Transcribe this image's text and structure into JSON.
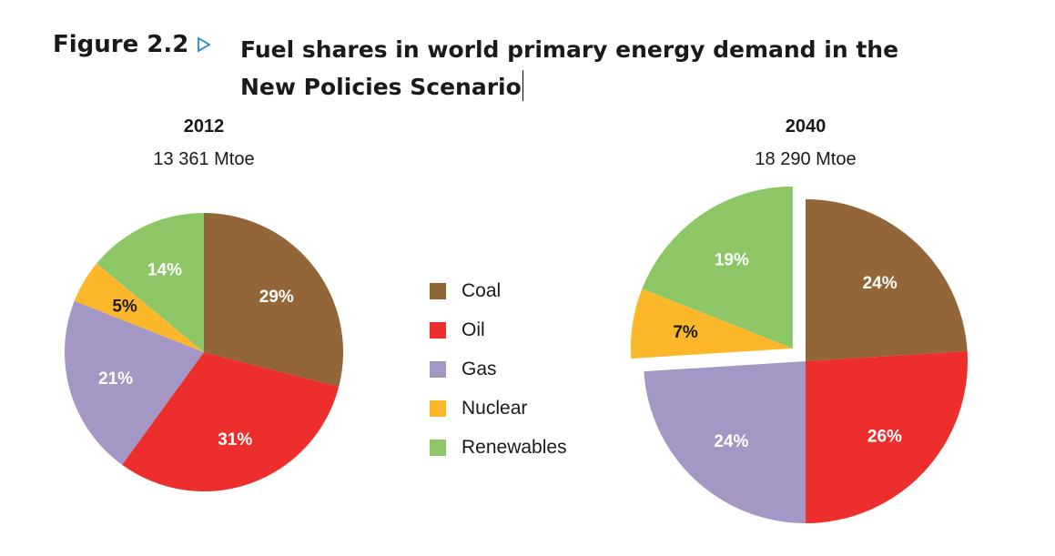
{
  "figure": {
    "label": "Figure 2.2",
    "title_line1": "Fuel shares in world primary energy demand in the",
    "title_line2": "New Policies Scenario"
  },
  "colors": {
    "coal": "#936639",
    "oil": "#ec2f2c",
    "gas": "#a597c5",
    "nuclear": "#fcb72a",
    "renewables": "#8dc665",
    "arrow": "#1f8ccb"
  },
  "chart_data": [
    {
      "type": "pie",
      "title": "2012",
      "subtitle": "13 361 Mtoe",
      "labels": [
        "Coal",
        "Oil",
        "Gas",
        "Nuclear",
        "Renewables"
      ],
      "values": [
        29,
        31,
        21,
        5,
        14
      ],
      "value_labels": [
        "29%",
        "31%",
        "21%",
        "5%",
        "14%"
      ],
      "exploded": []
    },
    {
      "type": "pie",
      "title": "2040",
      "subtitle": "18 290 Mtoe",
      "labels": [
        "Coal",
        "Oil",
        "Gas",
        "Nuclear",
        "Renewables"
      ],
      "values": [
        24,
        26,
        24,
        7,
        19
      ],
      "value_labels": [
        "24%",
        "26%",
        "24%",
        "7%",
        "19%"
      ],
      "exploded": [
        "Nuclear",
        "Renewables"
      ]
    }
  ],
  "legend": {
    "placement": "center",
    "items": [
      {
        "label": "Coal",
        "color": "#936639"
      },
      {
        "label": "Oil",
        "color": "#ec2f2c"
      },
      {
        "label": "Gas",
        "color": "#a597c5"
      },
      {
        "label": "Nuclear",
        "color": "#fcb72a"
      },
      {
        "label": "Renewables",
        "color": "#8dc665"
      }
    ]
  }
}
